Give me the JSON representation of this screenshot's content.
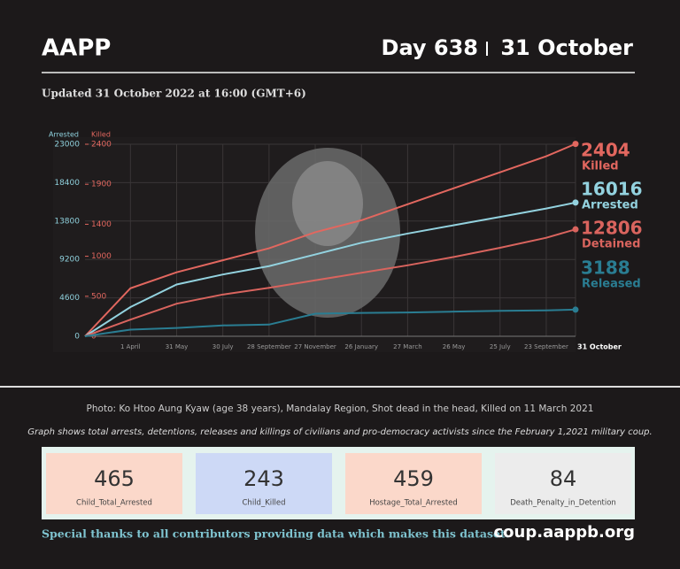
{
  "header": {
    "title": "AAPP",
    "day": "Day 638",
    "date": "31 October"
  },
  "updated": "Updated 31 October 2022 at 16:00 (GMT+6)",
  "chart_data": {
    "type": "line",
    "y_label": "Arrested",
    "y2_label": "Killed",
    "x": [
      1,
      60,
      120,
      180,
      240,
      300,
      360,
      420,
      480,
      540,
      600,
      638
    ],
    "xlim": [
      1,
      638
    ],
    "xticks": [
      {
        "value": 60,
        "label": "1 April"
      },
      {
        "value": 120,
        "label": "31 May"
      },
      {
        "value": 180,
        "label": "30 July"
      },
      {
        "value": 240,
        "label": "28 September"
      },
      {
        "value": 300,
        "label": "27 November"
      },
      {
        "value": 360,
        "label": "26 January"
      },
      {
        "value": 420,
        "label": "27 March"
      },
      {
        "value": 480,
        "label": "26 May"
      },
      {
        "value": 540,
        "label": "25 July"
      },
      {
        "value": 600,
        "label": "23 September"
      },
      {
        "value": 638,
        "label": "31 October"
      }
    ],
    "ylim": [
      0,
      23000
    ],
    "yticks": [
      0,
      4600,
      9200,
      13800,
      18400,
      23000
    ],
    "y2lim": [
      0,
      2400
    ],
    "y2ticks": [
      0,
      500,
      1000,
      1400,
      1900,
      2400
    ],
    "grid": true,
    "series": [
      {
        "name": "Killed",
        "color": "#e2675f",
        "axis": "y2",
        "values": [
          0,
          600,
          800,
          950,
          1100,
          1300,
          1450,
          1650,
          1850,
          2050,
          2250,
          2404
        ]
      },
      {
        "name": "Arrested",
        "color": "#93d2df",
        "values": [
          0,
          3500,
          6200,
          7400,
          8400,
          9800,
          11200,
          12300,
          13300,
          14300,
          15300,
          16016
        ]
      },
      {
        "name": "Detained",
        "color": "#d9645e",
        "values": [
          0,
          2000,
          3900,
          5000,
          5800,
          6700,
          7600,
          8500,
          9500,
          10600,
          11800,
          12806
        ]
      },
      {
        "name": "Released",
        "color": "#2a7d92",
        "values": [
          0,
          800,
          1000,
          1300,
          1400,
          2700,
          2800,
          2850,
          2950,
          3050,
          3100,
          3188
        ]
      }
    ]
  },
  "caption": "Photo: Ko Htoo Aung Kyaw (age 38 years), Mandalay Region, Shot dead in the head, Killed on 11 March 2021",
  "note": "Graph shows total arrests, detentions, releases and killings of civilians and pro-democracy activists since the February 1,2021 military coup.",
  "stats": [
    {
      "value": 465,
      "label": "Child_Total_Arrested"
    },
    {
      "value": 243,
      "label": "Child_Killed"
    },
    {
      "value": 459,
      "label": "Hostage_Total_Arrested"
    },
    {
      "value": 84,
      "label": "Death_Penalty_in_Detention"
    }
  ],
  "footer": {
    "thanks": "Special thanks to all contributors providing data which makes this dataset.",
    "url": "coup.aappb.org"
  }
}
